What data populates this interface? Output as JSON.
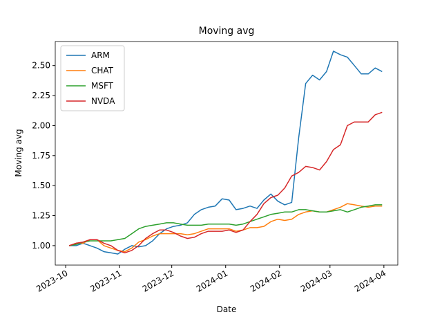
{
  "chart_data": {
    "type": "line",
    "title": "Moving avg",
    "x_label": "Date",
    "y_label": "Moving avg",
    "x": [
      19633,
      19637,
      19641,
      19645,
      19649,
      19653,
      19657,
      19661,
      19665,
      19669,
      19673,
      19677,
      19681,
      19685,
      19689,
      19693,
      19697,
      19701,
      19705,
      19709,
      19713,
      19717,
      19721,
      19725,
      19729,
      19733,
      19737,
      19741,
      19745,
      19749,
      19753,
      19757,
      19761,
      19765,
      19769,
      19773,
      19777,
      19781,
      19785,
      19789,
      19793,
      19797,
      19801,
      19805,
      19809,
      19813
    ],
    "xlim": [
      19625,
      19822
    ],
    "xticks": [
      {
        "value": 19631,
        "label": "2023-10"
      },
      {
        "value": 19662,
        "label": "2023-11"
      },
      {
        "value": 19692,
        "label": "2023-12"
      },
      {
        "value": 19723,
        "label": "2024-01"
      },
      {
        "value": 19754,
        "label": "2024-02"
      },
      {
        "value": 19783,
        "label": "2024-03"
      },
      {
        "value": 19814,
        "label": "2024-04"
      }
    ],
    "ylim": [
      0.838,
      2.7
    ],
    "yticks": [
      {
        "value": 1.0,
        "label": "1.00"
      },
      {
        "value": 1.25,
        "label": "1.25"
      },
      {
        "value": 1.5,
        "label": "1.50"
      },
      {
        "value": 1.75,
        "label": "1.75"
      },
      {
        "value": 2.0,
        "label": "2.00"
      },
      {
        "value": 2.25,
        "label": "2.25"
      },
      {
        "value": 2.5,
        "label": "2.50"
      }
    ],
    "legend": "upper left",
    "series": [
      {
        "name": "ARM",
        "color": "#1f77b4",
        "values": [
          1.0,
          1.0,
          1.02,
          1.0,
          0.98,
          0.95,
          0.94,
          0.93,
          0.97,
          1.0,
          0.99,
          1.0,
          1.04,
          1.1,
          1.14,
          1.16,
          1.17,
          1.19,
          1.26,
          1.3,
          1.32,
          1.33,
          1.39,
          1.38,
          1.3,
          1.31,
          1.33,
          1.31,
          1.38,
          1.43,
          1.37,
          1.34,
          1.36,
          1.9,
          2.35,
          2.42,
          2.38,
          2.45,
          2.62,
          2.59,
          2.57,
          2.5,
          2.43,
          2.43,
          2.48,
          2.45
        ]
      },
      {
        "name": "CHAT",
        "color": "#ff7f0e",
        "values": [
          1.0,
          1.02,
          1.02,
          1.05,
          1.05,
          1.0,
          0.98,
          0.96,
          0.95,
          0.98,
          1.03,
          1.05,
          1.08,
          1.1,
          1.1,
          1.1,
          1.1,
          1.09,
          1.1,
          1.12,
          1.14,
          1.14,
          1.14,
          1.14,
          1.12,
          1.13,
          1.15,
          1.15,
          1.16,
          1.2,
          1.22,
          1.21,
          1.22,
          1.26,
          1.28,
          1.29,
          1.28,
          1.28,
          1.3,
          1.32,
          1.35,
          1.34,
          1.33,
          1.32,
          1.33,
          1.33
        ]
      },
      {
        "name": "MSFT",
        "color": "#2ca02c",
        "values": [
          1.0,
          1.01,
          1.03,
          1.04,
          1.04,
          1.04,
          1.04,
          1.05,
          1.06,
          1.1,
          1.14,
          1.16,
          1.17,
          1.18,
          1.19,
          1.19,
          1.18,
          1.17,
          1.17,
          1.17,
          1.18,
          1.18,
          1.18,
          1.18,
          1.17,
          1.18,
          1.2,
          1.22,
          1.24,
          1.26,
          1.27,
          1.28,
          1.28,
          1.3,
          1.3,
          1.29,
          1.28,
          1.28,
          1.29,
          1.3,
          1.28,
          1.3,
          1.32,
          1.33,
          1.34,
          1.34
        ]
      },
      {
        "name": "NVDA",
        "color": "#d62728",
        "values": [
          1.0,
          1.02,
          1.03,
          1.05,
          1.05,
          1.02,
          1.0,
          0.96,
          0.94,
          0.96,
          1.0,
          1.06,
          1.1,
          1.13,
          1.13,
          1.11,
          1.08,
          1.06,
          1.07,
          1.1,
          1.12,
          1.12,
          1.12,
          1.13,
          1.11,
          1.13,
          1.2,
          1.26,
          1.35,
          1.4,
          1.42,
          1.48,
          1.58,
          1.61,
          1.66,
          1.65,
          1.63,
          1.7,
          1.8,
          1.84,
          2.0,
          2.03,
          2.03,
          2.03,
          2.09,
          2.11
        ]
      }
    ]
  }
}
